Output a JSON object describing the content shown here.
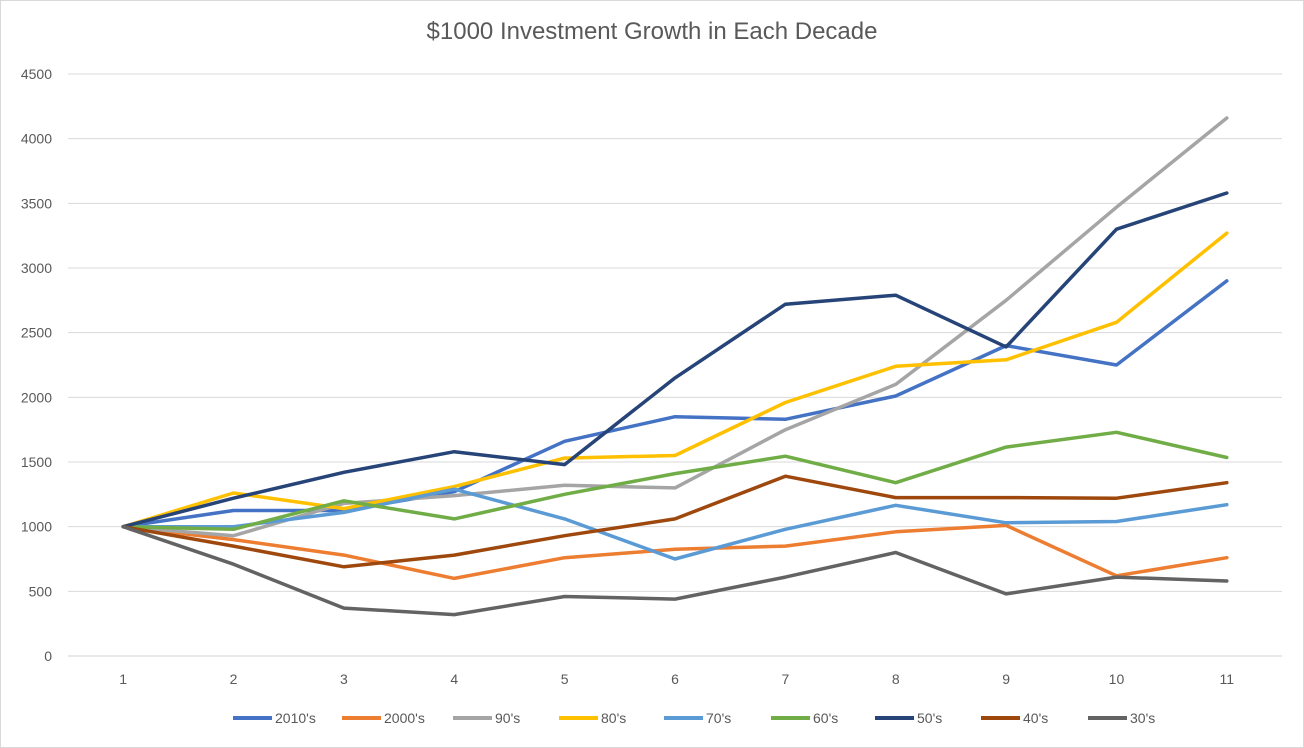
{
  "chart_data": {
    "type": "line",
    "title": "$1000 Investment Growth in Each Decade",
    "xlabel": "",
    "ylabel": "",
    "x": [
      1,
      2,
      3,
      4,
      5,
      6,
      7,
      8,
      9,
      10,
      11
    ],
    "ylim": [
      0,
      4500
    ],
    "yticks": [
      0,
      500,
      1000,
      1500,
      2000,
      2500,
      3000,
      3500,
      4000,
      4500
    ],
    "grid": true,
    "legend_position": "bottom",
    "series": [
      {
        "name": "2010's",
        "color": "#4472c4",
        "values": [
          1000,
          1125,
          1125,
          1270,
          1660,
          1850,
          1830,
          2010,
          2400,
          2250,
          2900
        ]
      },
      {
        "name": "2000's",
        "color": "#ed7d31",
        "values": [
          1000,
          900,
          780,
          600,
          760,
          825,
          850,
          960,
          1010,
          620,
          760
        ]
      },
      {
        "name": "90's",
        "color": "#a5a5a5",
        "values": [
          1000,
          930,
          1180,
          1240,
          1320,
          1300,
          1750,
          2100,
          2750,
          3470,
          4160
        ]
      },
      {
        "name": "80's",
        "color": "#ffc000",
        "values": [
          1000,
          1260,
          1140,
          1310,
          1530,
          1550,
          1960,
          2240,
          2290,
          2580,
          3270
        ]
      },
      {
        "name": "70's",
        "color": "#5b9bd5",
        "values": [
          1000,
          1000,
          1110,
          1290,
          1060,
          750,
          980,
          1165,
          1030,
          1040,
          1170
        ]
      },
      {
        "name": "60's",
        "color": "#70ad47",
        "values": [
          1000,
          980,
          1200,
          1060,
          1250,
          1410,
          1545,
          1340,
          1615,
          1730,
          1535
        ]
      },
      {
        "name": "50's",
        "color": "#264478",
        "values": [
          1000,
          1220,
          1420,
          1580,
          1480,
          2150,
          2720,
          2790,
          2390,
          3300,
          3580
        ]
      },
      {
        "name": "40's",
        "color": "#9e480e",
        "values": [
          1000,
          850,
          690,
          780,
          930,
          1060,
          1390,
          1225,
          1225,
          1220,
          1340
        ]
      },
      {
        "name": "30's",
        "color": "#636363",
        "values": [
          1000,
          710,
          370,
          320,
          460,
          440,
          610,
          800,
          480,
          610,
          580
        ]
      }
    ]
  }
}
